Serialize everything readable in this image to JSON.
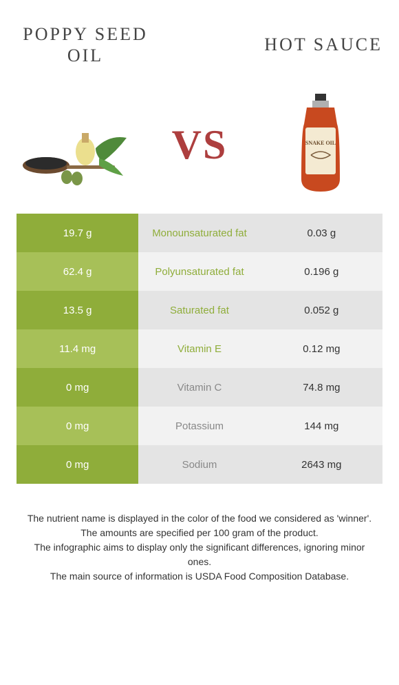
{
  "colors": {
    "green_dark": "#8fad3a",
    "green_light": "#a7c058",
    "gray_dark": "#e4e4e4",
    "gray_light": "#f2f2f2",
    "text_white": "#ffffff",
    "text_green": "#8fad3a",
    "text_gray": "#888888",
    "text_dark": "#333333",
    "title_color": "#444444",
    "vs_color": "#ad3e3e"
  },
  "titles": {
    "left": "POPPY SEED OIL",
    "right": "HOT SAUCE",
    "vs": "VS"
  },
  "rows": [
    {
      "left": "19.7 g",
      "mid": "Monounsaturated fat",
      "right": "0.03 g",
      "winner": "left"
    },
    {
      "left": "62.4 g",
      "mid": "Polyunsaturated fat",
      "right": "0.196 g",
      "winner": "left"
    },
    {
      "left": "13.5 g",
      "mid": "Saturated fat",
      "right": "0.052 g",
      "winner": "left"
    },
    {
      "left": "11.4 mg",
      "mid": "Vitamin E",
      "right": "0.12 mg",
      "winner": "left"
    },
    {
      "left": "0 mg",
      "mid": "Vitamin C",
      "right": "74.8 mg",
      "winner": "right"
    },
    {
      "left": "0 mg",
      "mid": "Potassium",
      "right": "144 mg",
      "winner": "right"
    },
    {
      "left": "0 mg",
      "mid": "Sodium",
      "right": "2643 mg",
      "winner": "right"
    }
  ],
  "footer": {
    "line1": "The nutrient name is displayed in the color of the food we considered as 'winner'.",
    "line2": "The amounts are specified per 100 gram of the product.",
    "line3": "The infographic aims to display only the significant differences, ignoring minor ones.",
    "line4": "The main source of information is USDA Food Composition Database."
  }
}
